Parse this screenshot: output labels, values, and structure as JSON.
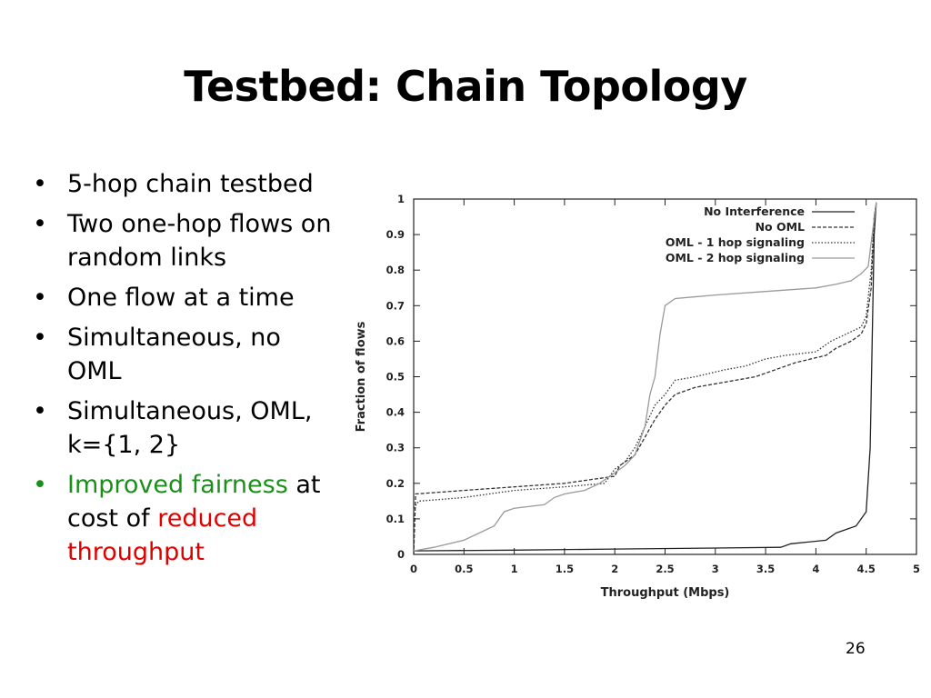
{
  "slide": {
    "title": "Testbed: Chain Topology",
    "page_number": "26",
    "bullets": [
      {
        "parts": [
          {
            "text": "5-hop chain testbed",
            "color": "#000000"
          }
        ]
      },
      {
        "parts": [
          {
            "text": "Two one-hop flows on random links",
            "color": "#000000"
          }
        ]
      },
      {
        "parts": [
          {
            "text": "One flow at a time",
            "color": "#000000"
          }
        ]
      },
      {
        "parts": [
          {
            "text": "Simultaneous, no OML",
            "color": "#000000"
          }
        ]
      },
      {
        "parts": [
          {
            "text": "Simultaneous, OML, k={1, 2}",
            "color": "#000000"
          }
        ]
      },
      {
        "parts": [
          {
            "text": "Improved fairness",
            "color": "#1a8f1a"
          },
          {
            "text": " at cost of ",
            "color": "#000000"
          },
          {
            "text": "reduced throughput",
            "color": "#e00000"
          }
        ]
      }
    ],
    "bullet_colors": [
      "#000000",
      "#000000",
      "#000000",
      "#000000",
      "#000000",
      "#1a8f1a"
    ]
  },
  "chart_data": {
    "type": "line",
    "title": "",
    "xlabel": "Throughput (Mbps)",
    "ylabel": "Fraction of flows",
    "xlim": [
      0,
      5
    ],
    "ylim": [
      0,
      1
    ],
    "x_ticks": [
      "0",
      "0.5",
      "1",
      "1.5",
      "2",
      "2.5",
      "3",
      "3.5",
      "4",
      "4.5",
      "5"
    ],
    "y_ticks": [
      "0",
      "0.1",
      "0.2",
      "0.3",
      "0.4",
      "0.5",
      "0.6",
      "0.7",
      "0.8",
      "0.9",
      "1"
    ],
    "grid": false,
    "legend_position": "top-right",
    "series": [
      {
        "name": "No Interference",
        "dash": "solid",
        "color": "#222222",
        "points": [
          [
            0,
            0.01
          ],
          [
            1,
            0.012
          ],
          [
            2,
            0.015
          ],
          [
            3,
            0.018
          ],
          [
            3.65,
            0.02
          ],
          [
            3.75,
            0.03
          ],
          [
            4.1,
            0.04
          ],
          [
            4.2,
            0.06
          ],
          [
            4.4,
            0.08
          ],
          [
            4.5,
            0.12
          ],
          [
            4.54,
            0.3
          ],
          [
            4.56,
            0.6
          ],
          [
            4.58,
            0.9
          ],
          [
            4.6,
            0.99
          ]
        ]
      },
      {
        "name": "No OML",
        "dash": "dashed",
        "color": "#333333",
        "points": [
          [
            0,
            0.0
          ],
          [
            0.02,
            0.17
          ],
          [
            0.5,
            0.18
          ],
          [
            1,
            0.19
          ],
          [
            1.5,
            0.2
          ],
          [
            1.75,
            0.21
          ],
          [
            2,
            0.22
          ],
          [
            2.05,
            0.25
          ],
          [
            2.2,
            0.28
          ],
          [
            2.3,
            0.33
          ],
          [
            2.4,
            0.38
          ],
          [
            2.5,
            0.42
          ],
          [
            2.6,
            0.45
          ],
          [
            2.8,
            0.47
          ],
          [
            3,
            0.48
          ],
          [
            3.4,
            0.5
          ],
          [
            3.6,
            0.52
          ],
          [
            3.7,
            0.53
          ],
          [
            3.8,
            0.54
          ],
          [
            4.1,
            0.56
          ],
          [
            4.2,
            0.58
          ],
          [
            4.35,
            0.6
          ],
          [
            4.45,
            0.62
          ],
          [
            4.5,
            0.65
          ],
          [
            4.55,
            0.75
          ],
          [
            4.58,
            0.95
          ],
          [
            4.6,
            0.99
          ]
        ]
      },
      {
        "name": "OML - 1 hop signaling",
        "dash": "dotted",
        "color": "#333333",
        "points": [
          [
            0,
            0.13
          ],
          [
            0.05,
            0.15
          ],
          [
            0.5,
            0.16
          ],
          [
            1,
            0.18
          ],
          [
            1.5,
            0.19
          ],
          [
            1.9,
            0.2
          ],
          [
            2,
            0.24
          ],
          [
            2.1,
            0.26
          ],
          [
            2.2,
            0.3
          ],
          [
            2.3,
            0.36
          ],
          [
            2.4,
            0.42
          ],
          [
            2.5,
            0.45
          ],
          [
            2.6,
            0.49
          ],
          [
            2.8,
            0.5
          ],
          [
            3.1,
            0.52
          ],
          [
            3.3,
            0.53
          ],
          [
            3.5,
            0.55
          ],
          [
            3.7,
            0.56
          ],
          [
            4,
            0.57
          ],
          [
            4.15,
            0.6
          ],
          [
            4.3,
            0.62
          ],
          [
            4.45,
            0.64
          ],
          [
            4.5,
            0.67
          ],
          [
            4.55,
            0.8
          ],
          [
            4.58,
            0.95
          ],
          [
            4.6,
            0.99
          ]
        ]
      },
      {
        "name": "OML - 2 hop signaling",
        "dash": "solid",
        "color": "#9a9a9a",
        "points": [
          [
            0,
            0.01
          ],
          [
            0.2,
            0.02
          ],
          [
            0.5,
            0.04
          ],
          [
            0.8,
            0.08
          ],
          [
            0.9,
            0.12
          ],
          [
            1,
            0.13
          ],
          [
            1.3,
            0.14
          ],
          [
            1.4,
            0.16
          ],
          [
            1.5,
            0.17
          ],
          [
            1.7,
            0.18
          ],
          [
            1.85,
            0.2
          ],
          [
            2,
            0.23
          ],
          [
            2.1,
            0.25
          ],
          [
            2.2,
            0.28
          ],
          [
            2.3,
            0.36
          ],
          [
            2.35,
            0.45
          ],
          [
            2.4,
            0.5
          ],
          [
            2.45,
            0.62
          ],
          [
            2.5,
            0.7
          ],
          [
            2.6,
            0.72
          ],
          [
            3,
            0.73
          ],
          [
            3.5,
            0.74
          ],
          [
            4,
            0.75
          ],
          [
            4.2,
            0.76
          ],
          [
            4.35,
            0.77
          ],
          [
            4.45,
            0.79
          ],
          [
            4.52,
            0.81
          ],
          [
            4.56,
            0.9
          ],
          [
            4.6,
            0.99
          ]
        ]
      }
    ]
  }
}
